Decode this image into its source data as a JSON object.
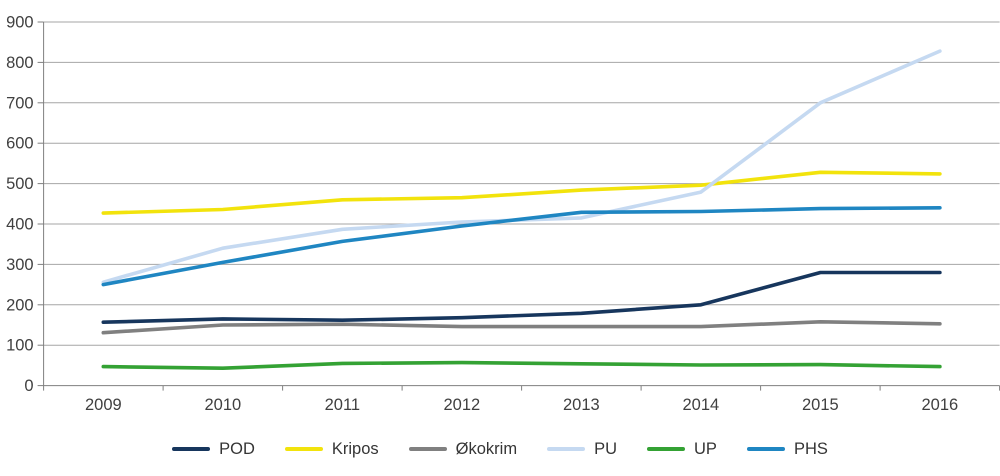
{
  "chart_data": {
    "type": "line",
    "title": "",
    "xlabel": "",
    "ylabel": "",
    "categories": [
      "2009",
      "2010",
      "2011",
      "2012",
      "2013",
      "2014",
      "2015",
      "2016"
    ],
    "series": [
      {
        "name": "POD",
        "color": "#17365d",
        "values": [
          157,
          165,
          162,
          168,
          179,
          200,
          280,
          280
        ]
      },
      {
        "name": "Kripos",
        "color": "#f2e30c",
        "values": [
          427,
          436,
          460,
          465,
          484,
          496,
          528,
          524
        ]
      },
      {
        "name": "Økokrim",
        "color": "#808080",
        "values": [
          131,
          150,
          152,
          146,
          146,
          146,
          158,
          153
        ]
      },
      {
        "name": "PU",
        "color": "#c5d9f1",
        "values": [
          256,
          340,
          387,
          405,
          415,
          479,
          700,
          828
        ]
      },
      {
        "name": "UP",
        "color": "#34a234",
        "values": [
          47,
          43,
          55,
          57,
          54,
          51,
          52,
          47
        ]
      },
      {
        "name": "PHS",
        "color": "#1f86c2",
        "values": [
          250,
          305,
          357,
          395,
          429,
          431,
          438,
          440
        ]
      }
    ],
    "ylim": [
      0,
      900
    ],
    "y_tick_step": 100,
    "y_tick_labels": [
      "0",
      "100",
      "200",
      "300",
      "400",
      "500",
      "600",
      "700",
      "800",
      "900"
    ],
    "grid": true,
    "legend_position": "bottom"
  },
  "colors": {
    "background": "#ffffff",
    "gridline": "#a6a6a6",
    "axis": "#7f7f7f",
    "tick_text": "#404040",
    "legend_text": "#353535"
  }
}
